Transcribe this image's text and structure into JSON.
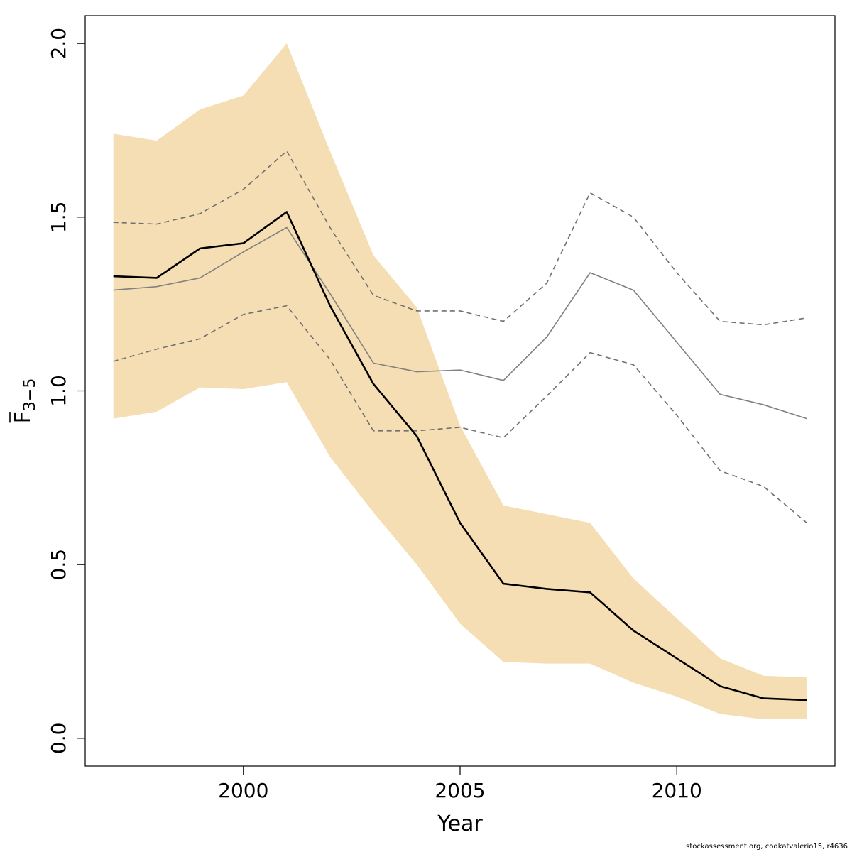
{
  "chart_data": {
    "type": "line",
    "xlabel": "Year",
    "ylabel": {
      "main": "F",
      "sub": "3−5"
    },
    "xlim": [
      1996.35,
      2013.65
    ],
    "ylim": [
      -0.08,
      2.08
    ],
    "x_ticks": [
      2000,
      2005,
      2010
    ],
    "y_ticks": [
      "0.0",
      "0.5",
      "1.0",
      "1.5",
      "2.0"
    ],
    "x": [
      1997,
      1998,
      1999,
      2000,
      2001,
      2002,
      2003,
      2004,
      2005,
      2006,
      2007,
      2008,
      2009,
      2010,
      2011,
      2012,
      2013
    ],
    "band": {
      "color": "#F5DEB3",
      "lower": [
        0.92,
        0.94,
        1.01,
        1.005,
        1.025,
        0.81,
        0.65,
        0.5,
        0.33,
        0.22,
        0.215,
        0.215,
        0.16,
        0.12,
        0.07,
        0.055,
        0.055
      ],
      "upper": [
        1.74,
        1.72,
        1.81,
        1.85,
        2.0,
        1.69,
        1.39,
        1.24,
        0.9,
        0.67,
        0.645,
        0.62,
        0.46,
        0.345,
        0.23,
        0.18,
        0.175
      ]
    },
    "series": [
      {
        "style": "black-solid",
        "color": "#000000",
        "values": [
          1.33,
          1.325,
          1.41,
          1.425,
          1.515,
          1.245,
          1.02,
          0.87,
          0.62,
          0.445,
          0.43,
          0.42,
          0.31,
          0.23,
          0.15,
          0.115,
          0.11
        ]
      },
      {
        "style": "grey-solid",
        "color": "#808080",
        "values": [
          1.29,
          1.3,
          1.325,
          1.4,
          1.47,
          1.28,
          1.08,
          1.055,
          1.06,
          1.03,
          1.155,
          1.34,
          1.29,
          1.14,
          0.99,
          0.96,
          0.92
        ]
      },
      {
        "style": "grey-dashed-upper",
        "color": "#707070",
        "values": [
          1.485,
          1.48,
          1.51,
          1.58,
          1.69,
          1.47,
          1.275,
          1.23,
          1.23,
          1.2,
          1.31,
          1.57,
          1.5,
          1.34,
          1.2,
          1.19,
          1.21
        ]
      },
      {
        "style": "grey-dashed-lower",
        "color": "#707070",
        "values": [
          1.085,
          1.12,
          1.15,
          1.22,
          1.245,
          1.09,
          0.885,
          0.885,
          0.895,
          0.865,
          0.985,
          1.11,
          1.075,
          0.93,
          0.77,
          0.725,
          0.62
        ]
      }
    ]
  },
  "footer": "stockassessment.org, codkatvalerio15, r4636"
}
